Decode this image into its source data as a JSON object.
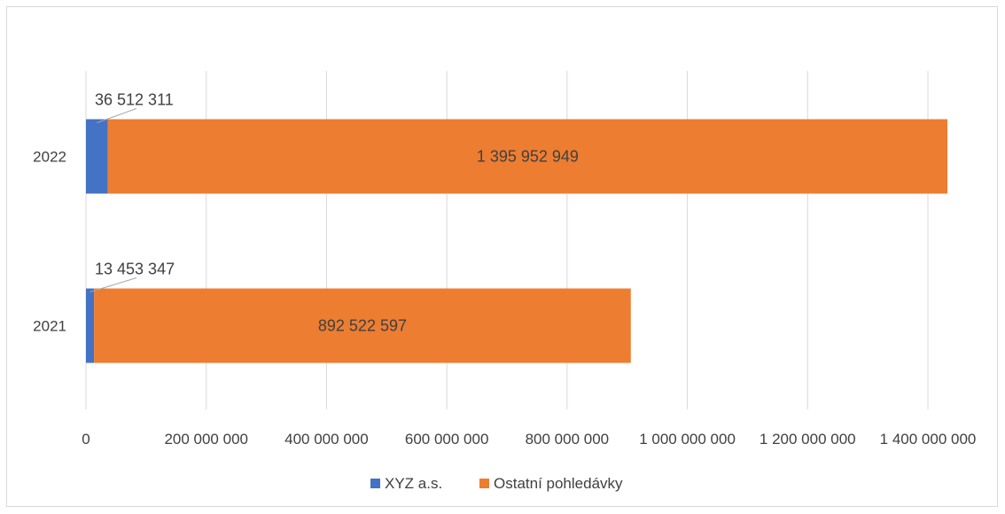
{
  "chart_data": {
    "type": "bar",
    "orientation": "horizontal",
    "stacked": true,
    "categories": [
      "2022",
      "2021"
    ],
    "series": [
      {
        "name": "XYZ a.s.",
        "color": "#4472c4",
        "values": [
          36512311,
          13453347
        ],
        "labels": [
          "36 512 311",
          "13 453 347"
        ]
      },
      {
        "name": "Ostatní pohledávky",
        "color": "#ed7d31",
        "values": [
          1395952949,
          892522597
        ],
        "labels": [
          "1 395 952 949",
          "892 522 597"
        ]
      }
    ],
    "xlim": [
      0,
      1400000000
    ],
    "xticks": [
      0,
      200000000,
      400000000,
      600000000,
      800000000,
      1000000000,
      1200000000,
      1400000000
    ],
    "xtick_labels": [
      "0",
      "200 000 000",
      "400 000 000",
      "600 000 000",
      "800 000 000",
      "1 000 000 000",
      "1 200 000 000",
      "1 400 000 000"
    ],
    "grid": "vertical",
    "legend_position": "bottom",
    "title": "",
    "xlabel": "",
    "ylabel": ""
  }
}
